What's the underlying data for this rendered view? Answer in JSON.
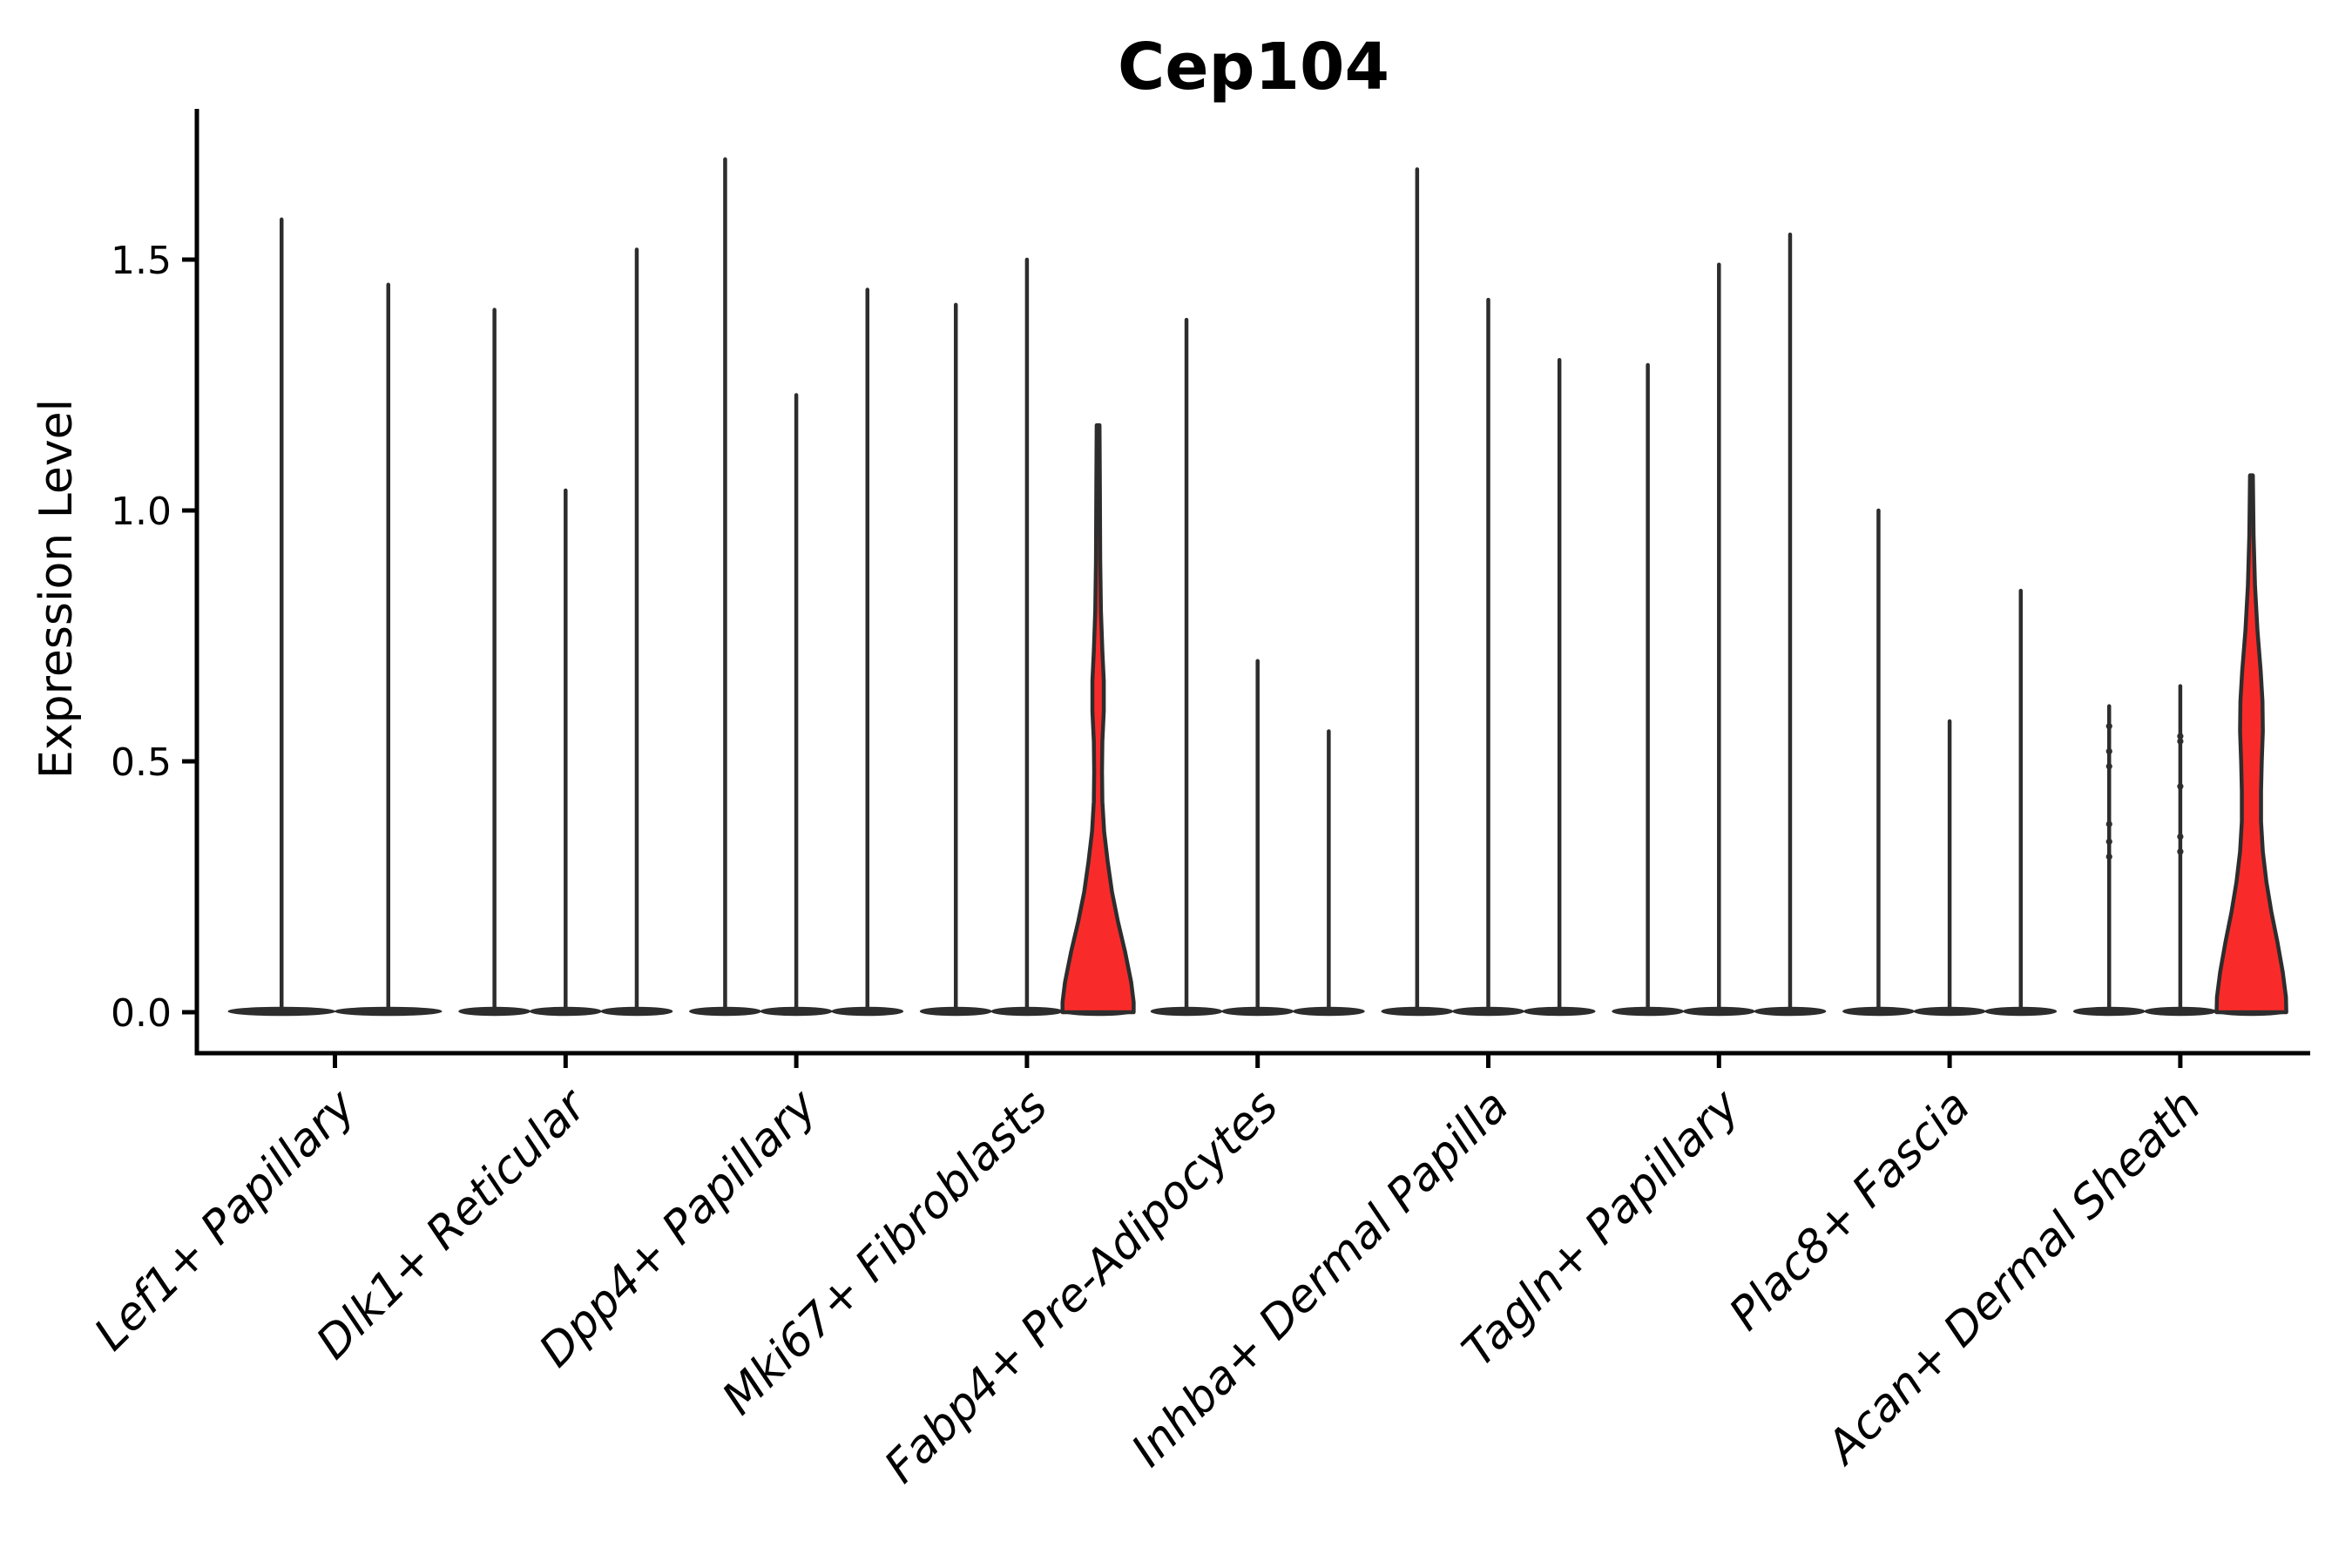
{
  "figure": {
    "background": "#ffffff"
  },
  "colors": {
    "highlight_fill": "#f92b2a",
    "violin_stroke": "#2d2d2d",
    "axis": "#000000",
    "text": "#000000"
  },
  "chart_data": {
    "type": "violin",
    "title": "Cep104",
    "ylabel": "Expression Level",
    "xlabel": "",
    "ylim": [
      -0.08,
      1.8
    ],
    "yticks": [
      0.0,
      0.5,
      1.0,
      1.5
    ],
    "ytick_labels": [
      "0.0",
      "0.5",
      "1.0",
      "1.5"
    ],
    "grid": false,
    "legend": "none",
    "categories": [
      "Lef1+ Papillary",
      "Dlk1+ Reticular",
      "Dpp4+ Papillary",
      "Mki67+ Fibroblasts",
      "Fabp4+ Pre-Adipocytes",
      "Inhba+ Dermal Papilla",
      "Tagln+ Papillary",
      "Plac8+ Fascia",
      "Acan+ Dermal Sheath"
    ],
    "groups": [
      {
        "category": "Lef1+ Papillary",
        "violins": [
          {
            "max": 1.58,
            "highlighted": false
          },
          {
            "max": 1.45,
            "highlighted": false
          }
        ]
      },
      {
        "category": "Dlk1+ Reticular",
        "violins": [
          {
            "max": 1.4,
            "highlighted": false
          },
          {
            "max": 1.04,
            "highlighted": false
          },
          {
            "max": 1.52,
            "highlighted": false
          }
        ]
      },
      {
        "category": "Dpp4+ Papillary",
        "violins": [
          {
            "max": 1.7,
            "highlighted": false
          },
          {
            "max": 1.23,
            "highlighted": false
          },
          {
            "max": 1.44,
            "highlighted": false
          }
        ]
      },
      {
        "category": "Mki67+ Fibroblasts",
        "violins": [
          {
            "max": 1.41,
            "highlighted": false
          },
          {
            "max": 1.5,
            "highlighted": false
          },
          {
            "max": 1.17,
            "highlighted": true,
            "profile": [
              [
                1.17,
                0.04
              ],
              [
                1.05,
                0.05
              ],
              [
                0.9,
                0.06
              ],
              [
                0.8,
                0.08
              ],
              [
                0.72,
                0.12
              ],
              [
                0.66,
                0.16
              ],
              [
                0.6,
                0.16
              ],
              [
                0.54,
                0.12
              ],
              [
                0.48,
                0.11
              ],
              [
                0.42,
                0.12
              ],
              [
                0.36,
                0.17
              ],
              [
                0.3,
                0.27
              ],
              [
                0.24,
                0.39
              ],
              [
                0.18,
                0.56
              ],
              [
                0.12,
                0.76
              ],
              [
                0.06,
                0.93
              ],
              [
                0.02,
                1.0
              ],
              [
                0.0,
                1.0
              ]
            ]
          }
        ]
      },
      {
        "category": "Fabp4+ Pre-Adipocytes",
        "violins": [
          {
            "max": 1.38,
            "highlighted": false
          },
          {
            "max": 0.7,
            "highlighted": false
          },
          {
            "max": 0.56,
            "highlighted": false
          }
        ]
      },
      {
        "category": "Inhba+ Dermal Papilla",
        "violins": [
          {
            "max": 1.68,
            "highlighted": false
          },
          {
            "max": 1.42,
            "highlighted": false
          },
          {
            "max": 1.3,
            "highlighted": false
          }
        ]
      },
      {
        "category": "Tagln+ Papillary",
        "violins": [
          {
            "max": 1.29,
            "highlighted": false
          },
          {
            "max": 1.49,
            "highlighted": false
          },
          {
            "max": 1.55,
            "highlighted": false
          }
        ]
      },
      {
        "category": "Plac8+ Fascia",
        "violins": [
          {
            "max": 1.0,
            "highlighted": false
          },
          {
            "max": 0.58,
            "highlighted": false
          },
          {
            "max": 0.84,
            "highlighted": false
          }
        ]
      },
      {
        "category": "Acan+ Dermal Sheath",
        "violins": [
          {
            "max": 0.61,
            "highlighted": false,
            "dots": [
              0.57,
              0.52,
              0.49,
              0.375,
              0.34,
              0.31
            ]
          },
          {
            "max": 0.65,
            "highlighted": false,
            "dots": [
              0.55,
              0.54,
              0.45,
              0.35,
              0.32
            ]
          },
          {
            "max": 1.07,
            "highlighted": true,
            "profile": [
              [
                1.07,
                0.04
              ],
              [
                0.95,
                0.06
              ],
              [
                0.85,
                0.1
              ],
              [
                0.76,
                0.17
              ],
              [
                0.68,
                0.26
              ],
              [
                0.62,
                0.31
              ],
              [
                0.56,
                0.32
              ],
              [
                0.5,
                0.29
              ],
              [
                0.44,
                0.27
              ],
              [
                0.38,
                0.27
              ],
              [
                0.32,
                0.32
              ],
              [
                0.26,
                0.42
              ],
              [
                0.2,
                0.56
              ],
              [
                0.14,
                0.73
              ],
              [
                0.08,
                0.88
              ],
              [
                0.03,
                0.97
              ],
              [
                0.0,
                0.98
              ]
            ]
          }
        ]
      }
    ]
  }
}
